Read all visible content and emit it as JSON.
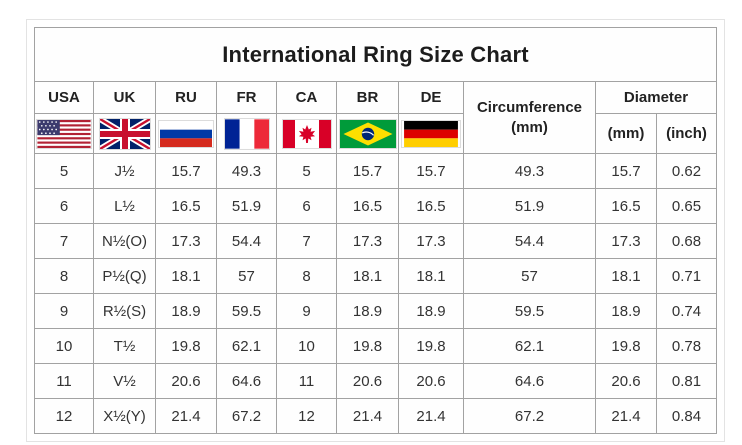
{
  "title": "International Ring Size Chart",
  "chart_data": {
    "type": "table",
    "title": "International Ring Size Chart",
    "columns": [
      "USA",
      "UK",
      "RU",
      "FR",
      "CA",
      "BR",
      "DE",
      "Circumference (mm)",
      "Diameter (mm)",
      "Diameter (inch)"
    ],
    "rows": [
      [
        "5",
        "J½",
        "15.7",
        "49.3",
        "5",
        "15.7",
        "15.7",
        "49.3",
        "15.7",
        "0.62"
      ],
      [
        "6",
        "L½",
        "16.5",
        "51.9",
        "6",
        "16.5",
        "16.5",
        "51.9",
        "16.5",
        "0.65"
      ],
      [
        "7",
        "N½(O)",
        "17.3",
        "54.4",
        "7",
        "17.3",
        "17.3",
        "54.4",
        "17.3",
        "0.68"
      ],
      [
        "8",
        "P½(Q)",
        "18.1",
        "57",
        "8",
        "18.1",
        "18.1",
        "57",
        "18.1",
        "0.71"
      ],
      [
        "9",
        "R½(S)",
        "18.9",
        "59.5",
        "9",
        "18.9",
        "18.9",
        "59.5",
        "18.9",
        "0.74"
      ],
      [
        "10",
        "T½",
        "19.8",
        "62.1",
        "10",
        "19.8",
        "19.8",
        "62.1",
        "19.8",
        "0.78"
      ],
      [
        "11",
        "V½",
        "20.6",
        "64.6",
        "11",
        "20.6",
        "20.6",
        "64.6",
        "20.6",
        "0.81"
      ],
      [
        "12",
        "X½(Y)",
        "21.4",
        "67.2",
        "12",
        "21.4",
        "21.4",
        "67.2",
        "21.4",
        "0.84"
      ]
    ]
  },
  "table": {
    "country_columns": [
      {
        "label": "USA",
        "flag_icon": "us-flag-icon"
      },
      {
        "label": "UK",
        "flag_icon": "uk-flag-icon"
      },
      {
        "label": "RU",
        "flag_icon": "ru-flag-icon"
      },
      {
        "label": "FR",
        "flag_icon": "fr-flag-icon"
      },
      {
        "label": "CA",
        "flag_icon": "ca-flag-icon"
      },
      {
        "label": "BR",
        "flag_icon": "br-flag-icon"
      },
      {
        "label": "DE",
        "flag_icon": "de-flag-icon"
      }
    ],
    "circumference_header": {
      "line1": "Circumference",
      "line2": "(mm)"
    },
    "diameter_header": {
      "label": "Diameter",
      "mm": "(mm)",
      "inch": "(inch)"
    }
  },
  "colors": {
    "table_border": "#a2a2a2",
    "outer_frame": "#e3e3e3",
    "title_text": "#1c1c1c",
    "body_text": "#333333"
  }
}
